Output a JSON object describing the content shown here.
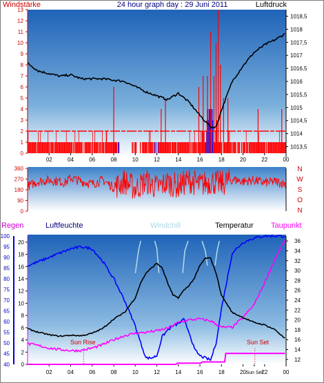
{
  "colors": {
    "wind": "#ff0000",
    "gust": "#ff0000",
    "pressure": "#000000",
    "direction": "#ff0000",
    "humidity": "#0000ff",
    "temperature": "#000000",
    "windchill": "#add8e6",
    "dewpoint": "#ff00ff",
    "rain": "#ff00ff",
    "sun_marker": "#cc0000"
  },
  "chart_data": [
    {
      "id": "wind-pressure",
      "type": "line",
      "title": "24 hour graph day : 29 Juni 2011",
      "left_label": "Windstärke",
      "right_label": "Luftdruck",
      "x_ticks": [
        "02",
        "04",
        "06",
        "08",
        "10",
        "12",
        "14",
        "16",
        "18",
        "20",
        "22",
        "00"
      ],
      "y_left_ticks": [
        "0",
        "1",
        "2",
        "3",
        "4",
        "5",
        "6",
        "7",
        "8",
        "9",
        "10",
        "11",
        "12",
        "13"
      ],
      "y_left_range": [
        0,
        13
      ],
      "y_right_ticks": [
        "1013,5",
        "1014",
        "1014,5",
        "1015",
        "1015,5",
        "1016",
        "1016,5",
        "1017",
        "1017,5",
        "1018",
        "1018,5"
      ],
      "y_right_range": [
        1013.25,
        1018.75
      ],
      "series": {
        "pressure_hpa": {
          "x_hours": [
            0,
            1,
            2,
            3,
            4,
            5,
            6,
            7,
            8,
            9,
            10,
            11,
            12,
            13,
            14,
            15,
            16,
            17,
            17.5,
            18,
            19,
            20,
            21,
            22,
            23,
            24
          ],
          "values": [
            1016.7,
            1016.4,
            1016.3,
            1016.2,
            1016.25,
            1016.1,
            1016.1,
            1016.1,
            1016.05,
            1016.0,
            1015.8,
            1015.6,
            1015.45,
            1015.3,
            1015.55,
            1015.2,
            1014.7,
            1014.25,
            1014.25,
            1014.9,
            1016.0,
            1016.6,
            1017.1,
            1017.4,
            1017.6,
            1017.85
          ]
        },
        "wind_base": {
          "x_hours": [
            0,
            1.5,
            3,
            6,
            8,
            9,
            11,
            12,
            13,
            14,
            15,
            16,
            16.5,
            17,
            17.5,
            18,
            19,
            20,
            22,
            23,
            24
          ],
          "values": [
            1,
            1,
            1,
            1,
            1,
            0,
            1,
            1,
            0.5,
            1,
            1,
            1,
            2,
            3,
            2,
            1,
            1,
            1,
            1,
            1,
            1
          ]
        },
        "wind_gust_spikes": {
          "x_hours": [
            8.0,
            12.4,
            12.8,
            15.9,
            16.3,
            16.7,
            17.0,
            17.3,
            17.5,
            17.7,
            17.9,
            18.2,
            18.6,
            21.4,
            23.6
          ],
          "values": [
            6,
            4,
            5,
            6,
            7,
            7,
            11,
            7,
            10,
            13,
            8,
            5,
            5,
            4,
            4
          ]
        },
        "wind_direction_blue_periods_hours": [
          [
            8.1,
            8.5
          ],
          [
            11.8,
            12.3
          ],
          [
            16.5,
            17.3
          ]
        ]
      }
    },
    {
      "id": "wind-direction",
      "type": "line",
      "y_left_ticks": [
        "0",
        "90",
        "180",
        "270",
        "360"
      ],
      "y_left_range": [
        0,
        360
      ],
      "compass_labels": [
        "N",
        "W",
        "S",
        "O",
        "N"
      ],
      "series": {
        "direction_deg": {
          "x_hours": [
            0,
            1,
            2,
            3,
            3.5,
            4,
            5,
            6,
            7,
            8,
            9,
            10,
            11,
            12,
            13,
            14,
            15,
            16,
            17,
            18,
            19,
            20,
            21,
            22,
            23,
            24
          ],
          "values": [
            210,
            250,
            260,
            250,
            240,
            280,
            250,
            230,
            260,
            200,
            250,
            190,
            250,
            200,
            240,
            210,
            260,
            220,
            250,
            230,
            270,
            250,
            260,
            240,
            250,
            230
          ]
        }
      }
    },
    {
      "id": "humidity-temperature",
      "type": "line",
      "left_labels": [
        "Regen",
        "Luftfeuchte"
      ],
      "legend": [
        "Windchill",
        "Temperatur",
        "Taupunkt"
      ],
      "y_left_ticks": [
        "40",
        "45",
        "50",
        "55",
        "60",
        "65",
        "70",
        "75",
        "80",
        "85",
        "90",
        "95",
        "100"
      ],
      "y_left_range": [
        40,
        100
      ],
      "y_rain_ticks": [
        "0",
        "2",
        "4",
        "6",
        "8",
        "10",
        "12",
        "14",
        "16",
        "18",
        "20"
      ],
      "y_rain_range": [
        0,
        21
      ],
      "y_right_ticks": [
        "12",
        "14",
        "16",
        "18",
        "20",
        "22",
        "24",
        "26",
        "28",
        "30",
        "32",
        "34",
        "36"
      ],
      "y_right_range": [
        11,
        37
      ],
      "x_ticks": [
        "02",
        "04",
        "06",
        "08",
        "10",
        "12",
        "14",
        "16",
        "18",
        "20",
        "Sun Set",
        "22",
        "00"
      ],
      "annotations": {
        "sun_rise": "Sun Rise",
        "sun_set": "Sun Set"
      },
      "series": {
        "humidity_pct": {
          "x_hours": [
            0,
            1,
            2,
            3,
            4,
            5,
            6,
            7,
            8,
            9,
            10,
            10.5,
            11,
            11.5,
            12,
            12.5,
            13,
            13.5,
            14,
            14.5,
            15,
            15.5,
            16,
            16.5,
            17,
            17.5,
            18,
            19,
            20,
            21,
            22,
            23,
            24
          ],
          "values": [
            86,
            88,
            90,
            92,
            94,
            95,
            94,
            88,
            80,
            70,
            58,
            50,
            43,
            43,
            44,
            53,
            56,
            58,
            59,
            61,
            55,
            47,
            44,
            43,
            42,
            50,
            66,
            92,
            97,
            99,
            100,
            100,
            100
          ]
        },
        "temperature_c": {
          "x_hours": [
            0,
            1,
            2,
            3,
            4,
            5,
            6,
            7,
            8,
            9,
            10,
            10.5,
            11,
            11.5,
            12,
            12.5,
            13,
            13.5,
            14,
            14.5,
            15,
            15.5,
            16,
            16.5,
            17,
            17.5,
            18,
            19,
            20,
            21,
            22,
            23,
            24
          ],
          "values": [
            18.2,
            17.5,
            17.0,
            16.7,
            16.9,
            16.8,
            17.3,
            18.3,
            20.2,
            21.5,
            24.5,
            27.5,
            29.5,
            30.5,
            31.5,
            30.5,
            27.5,
            25,
            24.5,
            26,
            27,
            28.5,
            31,
            32.5,
            32.5,
            29.5,
            25,
            21.5,
            20.5,
            19.5,
            19.0,
            18.0,
            16.0
          ]
        },
        "windchill_c": {
          "x_hours": [
            10.0,
            10.3,
            10.5,
            11.8,
            12.0,
            12.2,
            14.4,
            14.6,
            14.9,
            16.2,
            16.5,
            16.7,
            17.4,
            17.6,
            17.8
          ],
          "values": [
            29.5,
            34.0,
            36.0,
            36.0,
            34.5,
            29.5,
            29.5,
            34.0,
            36.0,
            36.0,
            34.0,
            31.0,
            31.0,
            34.0,
            36.0
          ]
        },
        "dewpoint_c": {
          "x_hours": [
            0,
            1,
            2,
            3,
            4,
            5,
            6,
            7,
            8,
            9,
            10,
            11,
            12,
            13,
            14,
            15,
            16,
            17,
            18,
            19,
            20,
            21,
            22,
            23,
            24
          ],
          "values": [
            15.2,
            14.8,
            14.3,
            14.0,
            13.8,
            13.8,
            14.3,
            15.0,
            16.0,
            16.8,
            17.3,
            17.5,
            17.8,
            18.3,
            19.5,
            20.0,
            20.2,
            19.8,
            18.5,
            18.5,
            20.5,
            23.0,
            27.5,
            32.5,
            36.5
          ]
        },
        "rain_mm": {
          "x_hours": [
            0,
            13.7,
            13.8,
            16.0,
            16.1,
            18.2,
            18.3,
            20.5,
            20.6,
            24
          ],
          "values": [
            0,
            0,
            0.2,
            0.2,
            0.4,
            0.4,
            1.8,
            1.8,
            1.8,
            1.8
          ]
        }
      }
    }
  ]
}
